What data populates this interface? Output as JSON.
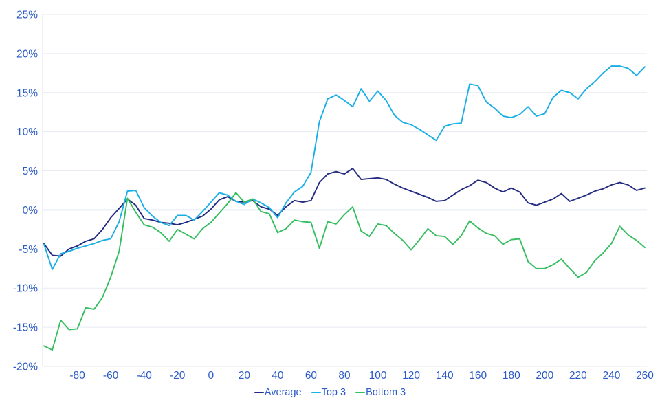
{
  "chart_data": {
    "type": "line",
    "title": "",
    "xlabel": "",
    "ylabel": "",
    "xlim": [
      -100,
      260
    ],
    "ylim": [
      -20,
      25
    ],
    "grid": "horizontal",
    "zero_line": true,
    "legend_position": "bottom",
    "x_ticks": [
      -80,
      -60,
      -40,
      -20,
      0,
      20,
      40,
      60,
      80,
      100,
      120,
      140,
      160,
      180,
      200,
      220,
      240,
      260
    ],
    "y_ticks": [
      25,
      20,
      15,
      10,
      5,
      0,
      -5,
      -10,
      -15,
      -20
    ],
    "y_tick_suffix": "%",
    "x": [
      -100,
      -95,
      -90,
      -85,
      -80,
      -75,
      -70,
      -65,
      -60,
      -55,
      -50,
      -45,
      -40,
      -35,
      -30,
      -25,
      -20,
      -15,
      -10,
      -5,
      0,
      5,
      10,
      15,
      20,
      25,
      30,
      35,
      40,
      45,
      50,
      55,
      60,
      65,
      70,
      75,
      80,
      85,
      90,
      95,
      100,
      105,
      110,
      115,
      120,
      125,
      130,
      135,
      140,
      145,
      150,
      155,
      160,
      165,
      170,
      175,
      180,
      185,
      190,
      195,
      200,
      205,
      210,
      215,
      220,
      225,
      230,
      235,
      240,
      245,
      250,
      255,
      260
    ],
    "series": [
      {
        "name": "Average",
        "color": "#232a80",
        "values": [
          -4.3,
          -5.8,
          -5.9,
          -5.0,
          -4.6,
          -4.0,
          -3.7,
          -2.5,
          -1.0,
          0.2,
          1.4,
          0.6,
          -1.1,
          -1.3,
          -1.6,
          -1.7,
          -1.9,
          -1.6,
          -1.2,
          -0.8,
          0.1,
          1.3,
          1.7,
          1.1,
          1.0,
          1.2,
          0.4,
          0.1,
          -0.7,
          0.4,
          1.2,
          1.0,
          1.2,
          3.5,
          4.6,
          4.9,
          4.6,
          5.3,
          3.9,
          4.0,
          4.1,
          3.9,
          3.3,
          2.8,
          2.4,
          2.0,
          1.6,
          1.1,
          1.2,
          1.9,
          2.6,
          3.1,
          3.8,
          3.5,
          2.8,
          2.3,
          2.8,
          2.3,
          0.9,
          0.6,
          1.0,
          1.4,
          2.1,
          1.1,
          1.5,
          1.9,
          2.4,
          2.7,
          3.2,
          3.5,
          3.2,
          2.5,
          2.8
        ]
      },
      {
        "name": "Top 3",
        "color": "#18aee6",
        "values": [
          -4.4,
          -7.6,
          -5.6,
          -5.3,
          -4.9,
          -4.6,
          -4.3,
          -3.9,
          -3.7,
          -1.5,
          2.4,
          2.5,
          0.3,
          -0.8,
          -1.6,
          -2.0,
          -0.7,
          -0.7,
          -1.3,
          -0.2,
          1.0,
          2.2,
          1.9,
          1.1,
          0.7,
          1.4,
          0.9,
          0.3,
          -1.0,
          0.9,
          2.3,
          3.0,
          4.8,
          11.3,
          14.2,
          14.7,
          14.0,
          13.2,
          15.5,
          13.9,
          15.2,
          14.0,
          12.1,
          11.2,
          10.9,
          10.3,
          9.6,
          8.9,
          10.7,
          11.0,
          11.1,
          16.1,
          15.9,
          13.8,
          13.0,
          12.0,
          11.8,
          12.2,
          13.2,
          12.0,
          12.3,
          14.4,
          15.3,
          15.0,
          14.2,
          15.5,
          16.4,
          17.5,
          18.4,
          18.4,
          18.1,
          17.2,
          18.3
        ]
      },
      {
        "name": "Bottom 3",
        "color": "#35be5f",
        "values": [
          -17.4,
          -17.9,
          -14.1,
          -15.3,
          -15.2,
          -12.5,
          -12.7,
          -11.2,
          -8.6,
          -5.3,
          1.5,
          -0.3,
          -1.9,
          -2.2,
          -2.9,
          -4.0,
          -2.5,
          -3.1,
          -3.7,
          -2.4,
          -1.6,
          -0.4,
          0.8,
          2.2,
          1.0,
          1.4,
          -0.2,
          -0.5,
          -2.9,
          -2.4,
          -1.3,
          -1.5,
          -1.6,
          -4.9,
          -1.5,
          -1.8,
          -0.6,
          0.4,
          -2.7,
          -3.4,
          -1.8,
          -2.0,
          -3.0,
          -3.9,
          -5.1,
          -3.8,
          -2.4,
          -3.3,
          -3.4,
          -4.4,
          -3.3,
          -1.4,
          -2.3,
          -3.0,
          -3.3,
          -4.4,
          -3.8,
          -3.7,
          -6.6,
          -7.5,
          -7.5,
          -7.0,
          -6.3,
          -7.5,
          -8.6,
          -8.0,
          -6.5,
          -5.5,
          -4.3,
          -2.1,
          -3.2,
          -3.9,
          -4.8
        ]
      }
    ],
    "colors": {
      "axis_text": "#2a5ac6",
      "grid": "#e7eaf2",
      "zero_line": "#b7cde9",
      "axis_line": "#dde2ee",
      "background": "#ffffff"
    }
  },
  "legend": {
    "items": [
      {
        "label": "Average",
        "color": "#232a80"
      },
      {
        "label": "Top 3",
        "color": "#18aee6"
      },
      {
        "label": "Bottom 3",
        "color": "#35be5f"
      }
    ]
  }
}
